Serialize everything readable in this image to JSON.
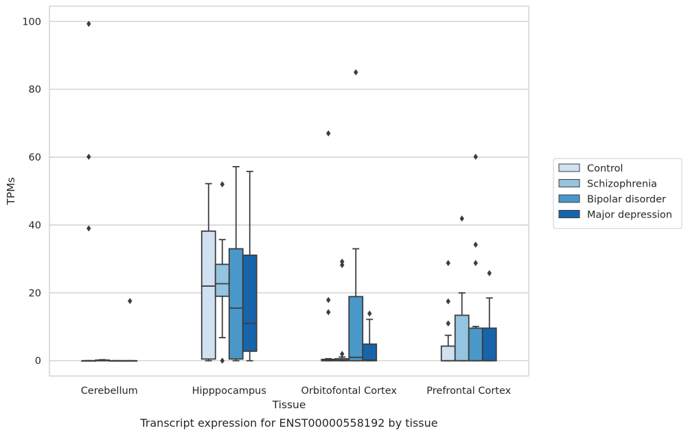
{
  "chart_data": {
    "type": "box",
    "xlabel": "Tissue",
    "ylabel": "TPMs",
    "caption": "Transcript expression for ENST00000558192 by tissue",
    "categories": [
      "Cerebellum",
      "Hipppocampus",
      "Orbitofontal Cortex",
      "Prefrontal Cortex"
    ],
    "ylim": [
      -4.5,
      104.5
    ],
    "yticks": [
      0,
      20,
      40,
      60,
      80,
      100
    ],
    "grid": "horizontal",
    "legend_position": "right",
    "series": [
      {
        "name": "Control",
        "color": "#d0e1f2",
        "boxes": [
          {
            "q1": 0,
            "median": 0,
            "q3": 0,
            "whisker_low": 0,
            "whisker_high": 0,
            "outliers": [
              99.3,
              60.1,
              39
            ]
          },
          {
            "q1": 0.5,
            "median": 22,
            "q3": 38.2,
            "whisker_low": 0,
            "whisker_high": 52.2,
            "outliers": []
          },
          {
            "q1": 0,
            "median": 0.1,
            "q3": 0.4,
            "whisker_low": 0,
            "whisker_high": 0.6,
            "outliers": [
              67,
              17.9,
              14.3
            ]
          },
          {
            "q1": 0,
            "median": 0,
            "q3": 4.3,
            "whisker_low": 0,
            "whisker_high": 7.5,
            "outliers": [
              28.8,
              17.5,
              11
            ]
          }
        ]
      },
      {
        "name": "Schizophrenia",
        "color": "#94c4df",
        "boxes": [
          {
            "q1": 0,
            "median": 0.1,
            "q3": 0.2,
            "whisker_low": 0,
            "whisker_high": 0.3,
            "outliers": []
          },
          {
            "q1": 19,
            "median": 22.7,
            "q3": 28.4,
            "whisker_low": 6.8,
            "whisker_high": 35.7,
            "outliers": [
              52,
              0
            ]
          },
          {
            "q1": 0,
            "median": 0.2,
            "q3": 0.6,
            "whisker_low": 0,
            "whisker_high": 1.1,
            "outliers": [
              29.2,
              28.2,
              2
            ]
          },
          {
            "q1": 0,
            "median": 0,
            "q3": 13.4,
            "whisker_low": 0,
            "whisker_high": 20,
            "outliers": [
              41.9
            ]
          }
        ]
      },
      {
        "name": "Bipolar disorder",
        "color": "#4a98c9",
        "boxes": [
          {
            "q1": 0,
            "median": 0,
            "q3": 0,
            "whisker_low": 0,
            "whisker_high": 0,
            "outliers": []
          },
          {
            "q1": 0.5,
            "median": 15.5,
            "q3": 33,
            "whisker_low": 0,
            "whisker_high": 57.2,
            "outliers": []
          },
          {
            "q1": 0,
            "median": 1,
            "q3": 18.9,
            "whisker_low": 0,
            "whisker_high": 33,
            "outliers": [
              85
            ]
          },
          {
            "q1": 0,
            "median": 0,
            "q3": 9.6,
            "whisker_low": 0,
            "whisker_high": 10.1,
            "outliers": [
              60.1,
              34.2,
              28.8
            ]
          }
        ]
      },
      {
        "name": "Major depression",
        "color": "#1764ab",
        "boxes": [
          {
            "q1": 0,
            "median": 0,
            "q3": 0,
            "whisker_low": 0,
            "whisker_high": 0,
            "outliers": [
              17.6
            ]
          },
          {
            "q1": 2.8,
            "median": 11,
            "q3": 31.1,
            "whisker_low": 0,
            "whisker_high": 55.8,
            "outliers": []
          },
          {
            "q1": 0,
            "median": 0.2,
            "q3": 4.9,
            "whisker_low": 0,
            "whisker_high": 12.2,
            "outliers": [
              13.9
            ]
          },
          {
            "q1": 0,
            "median": 0,
            "q3": 9.6,
            "whisker_low": 0,
            "whisker_high": 18.5,
            "outliers": [
              25.8
            ]
          }
        ]
      }
    ]
  }
}
